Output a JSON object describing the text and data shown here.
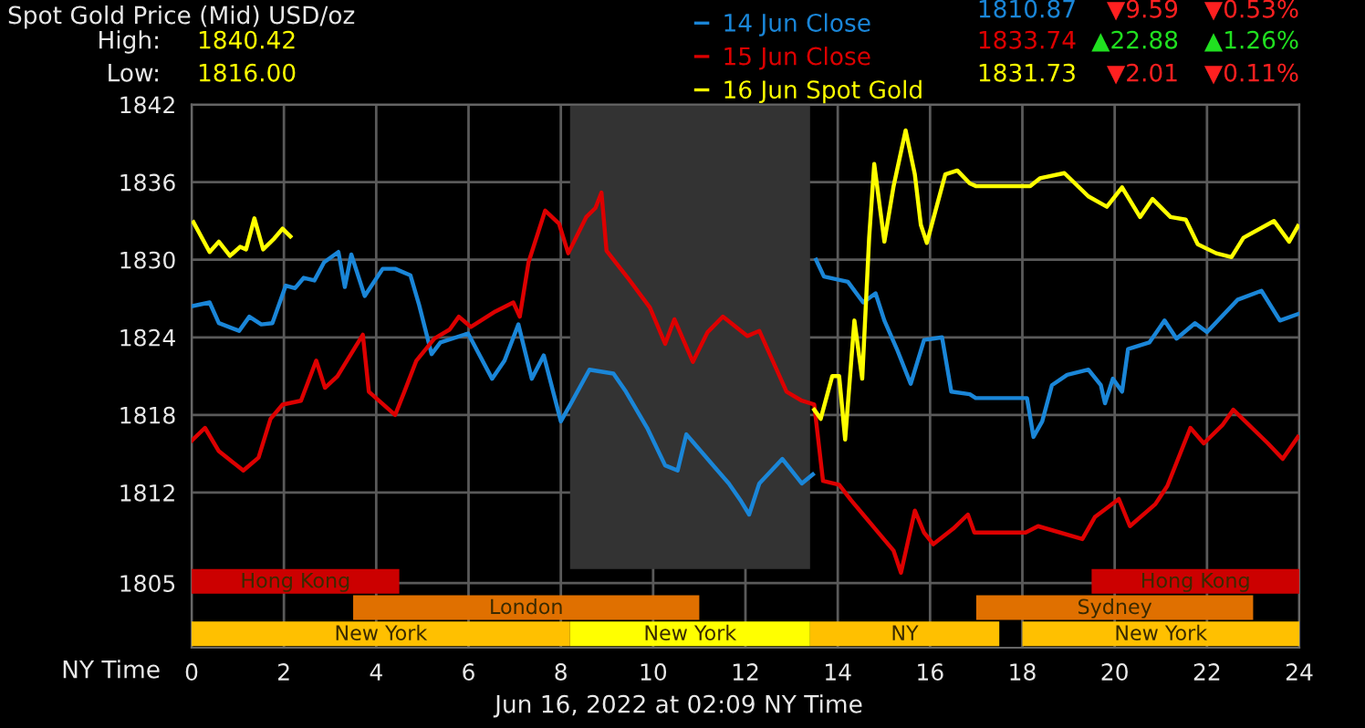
{
  "chart_data": {
    "type": "line",
    "title": "Spot Gold Price (Mid) USD/oz",
    "xlabel": "NY Time",
    "annotations": [
      "High:",
      "1840.42",
      "Low:",
      "1816.00",
      "1810.87",
      "▼9.59",
      "▼0.53%",
      "1833.74",
      "▲22.88",
      "▲1.26%",
      "1831.73",
      "▼2.01",
      "▼0.11%",
      "Jun 16, 2022 at 02:09 NY Time"
    ],
    "xlim": [
      0,
      24
    ],
    "xticks": [
      0,
      2,
      4,
      6,
      8,
      10,
      12,
      14,
      16,
      18,
      20,
      22,
      24
    ],
    "ylim": [
      1800,
      1842
    ],
    "yticks": [
      1842,
      1836,
      1830,
      1824,
      1818,
      1812,
      1805
    ],
    "grid": true,
    "legend": "top right",
    "bands": [
      {
        "axis": "x",
        "from": 8.2,
        "to": 13.4,
        "color": "#333333"
      },
      {
        "axis": "x",
        "from": 0,
        "to": 4.5,
        "label": "Hong Kong",
        "color": "#cc0000"
      },
      {
        "axis": "x",
        "from": 19.5,
        "to": 24,
        "label": "Hong Kong",
        "color": "#cc0000"
      },
      {
        "axis": "x",
        "from": 3.5,
        "to": 11,
        "label": "London",
        "color": "#e07000"
      },
      {
        "axis": "x",
        "from": 17,
        "to": 23,
        "label": "Sydney",
        "color": "#e07000"
      },
      {
        "axis": "x",
        "from": 0,
        "to": 8.2,
        "label": "New York",
        "color": "#ffc000"
      },
      {
        "axis": "x",
        "from": 8.2,
        "to": 13.4,
        "label": "New York",
        "color": "#ffff00"
      },
      {
        "axis": "x",
        "from": 13.4,
        "to": 17.5,
        "label": "NY",
        "color": "#ffc000"
      },
      {
        "axis": "x",
        "from": 18,
        "to": 24,
        "label": "New York",
        "color": "#ffc000"
      }
    ],
    "series": [
      {
        "name": "14 Jun Close",
        "color": "#1a86d8",
        "x": [
          0,
          0.39,
          0.59,
          1.03,
          1.25,
          1.51,
          1.75,
          2.04,
          2.24,
          2.43,
          2.66,
          2.87,
          3.18,
          3.32,
          3.46,
          3.75,
          4.14,
          4.41,
          4.74,
          4.93,
          5.2,
          5.39,
          5.99,
          6.51,
          6.78,
          7.08,
          7.37,
          7.63,
          8.0,
          8.22,
          8.62,
          9.14,
          9.41,
          9.87,
          10.26,
          10.53,
          10.72,
          11.25,
          11.64,
          11.91,
          12.08,
          12.3,
          12.8,
          13.22,
          13.46,
          13.49,
          13.53,
          13.7,
          14.22,
          14.55,
          14.82,
          15.01,
          15.28,
          15.58,
          15.87,
          16.26,
          16.46,
          16.86,
          16.99,
          18.1,
          18.24,
          18.43,
          18.64,
          18.97,
          19.43,
          19.7,
          19.79,
          19.96,
          20.16,
          20.29,
          20.75,
          21.08,
          21.34,
          21.74,
          22.0,
          22.66,
          23.18,
          23.58,
          23.97
        ],
        "values": [
          1826.4,
          1826.7,
          1825.1,
          1824.5,
          1825.6,
          1825.0,
          1825.1,
          1828.0,
          1827.8,
          1828.6,
          1828.4,
          1829.8,
          1830.6,
          1827.9,
          1830.4,
          1827.2,
          1829.3,
          1829.3,
          1828.8,
          1826.5,
          1822.7,
          1823.6,
          1824.3,
          1820.8,
          1822.2,
          1825.0,
          1820.8,
          1822.6,
          1817.5,
          1818.9,
          1821.5,
          1821.2,
          1819.8,
          1817.0,
          1814.1,
          1813.7,
          1816.5,
          1814.3,
          1812.7,
          1811.3,
          1810.3,
          1812.7,
          1814.6,
          1812.7,
          1813.4,
          null,
          1830.0,
          1828.7,
          1828.3,
          1826.7,
          1827.4,
          1825.3,
          1823.1,
          1820.4,
          1823.8,
          1824.0,
          1819.8,
          1819.6,
          1819.3,
          1819.3,
          1816.3,
          1817.5,
          1820.3,
          1821.1,
          1821.5,
          1820.3,
          1818.9,
          1820.8,
          1819.8,
          1823.1,
          1823.6,
          1825.3,
          1823.9,
          1825.1,
          1824.4,
          1826.9,
          1827.6,
          1825.3,
          1825.8
        ]
      },
      {
        "name": "15 Jun Close",
        "color": "#dd0000",
        "x": [
          0,
          0.29,
          0.59,
          1.12,
          1.45,
          1.71,
          1.97,
          2.37,
          2.7,
          2.89,
          3.16,
          3.71,
          3.84,
          4.41,
          4.61,
          4.87,
          5.26,
          5.59,
          5.79,
          6.05,
          6.58,
          6.97,
          7.11,
          7.3,
          7.66,
          7.96,
          8.16,
          8.55,
          8.75,
          8.88,
          8.99,
          9.47,
          9.93,
          10.26,
          10.46,
          10.86,
          11.18,
          11.51,
          12.04,
          12.3,
          12.89,
          13.22,
          13.49,
          13.68,
          14.03,
          14.29,
          14.55,
          14.88,
          15.21,
          15.37,
          15.67,
          15.87,
          16.07,
          16.5,
          16.82,
          16.96,
          18.07,
          18.34,
          19.3,
          19.57,
          20.09,
          20.33,
          20.88,
          21.14,
          21.64,
          21.93,
          22.33,
          22.57,
          23.32,
          23.64,
          23.97
        ],
        "values": [
          1816.0,
          1817.0,
          1815.2,
          1813.7,
          1814.7,
          1817.7,
          1818.8,
          1819.1,
          1822.2,
          1820.1,
          1821.0,
          1824.2,
          1819.8,
          1818.0,
          1819.8,
          1822.2,
          1823.9,
          1824.6,
          1825.6,
          1824.8,
          1826.0,
          1826.7,
          1825.6,
          1829.8,
          1833.8,
          1832.8,
          1830.5,
          1833.3,
          1834.0,
          1835.2,
          1830.7,
          1828.5,
          1826.3,
          1823.5,
          1825.4,
          1822.1,
          1824.4,
          1825.6,
          1824.1,
          1824.5,
          1819.8,
          1819.1,
          1818.8,
          1812.9,
          1812.6,
          1811.4,
          1810.3,
          1808.9,
          1807.5,
          1805.8,
          1810.6,
          1808.9,
          1808.0,
          1809.2,
          1810.3,
          1808.9,
          1808.9,
          1809.4,
          1808.4,
          1810.1,
          1811.5,
          1809.4,
          1811.1,
          1812.5,
          1817.0,
          1815.8,
          1817.2,
          1818.4,
          1815.8,
          1814.6,
          1816.3
        ]
      },
      {
        "name": "16 Jun Spot Gold",
        "color": "#ffff00",
        "x": [
          0.04,
          0.39,
          0.59,
          0.83,
          1.05,
          1.18,
          1.36,
          1.55,
          1.78,
          1.97,
          2.14,
          2.2,
          13.49,
          13.63,
          13.88,
          14.03,
          14.16,
          14.36,
          14.53,
          14.68,
          14.79,
          15.01,
          15.21,
          15.47,
          15.67,
          15.8,
          15.93,
          16.33,
          16.59,
          16.86,
          16.99,
          18.17,
          18.38,
          18.91,
          19.43,
          19.83,
          20.16,
          20.55,
          20.82,
          21.21,
          21.54,
          21.8,
          22.2,
          22.53,
          22.79,
          23.45,
          23.78,
          23.97
        ],
        "values": [
          1832.9,
          1830.6,
          1831.4,
          1830.3,
          1831.0,
          1830.8,
          1833.2,
          1830.8,
          1831.6,
          1832.4,
          1831.8,
          null,
          1818.4,
          1817.7,
          1821.0,
          1821.0,
          1816.1,
          1825.3,
          1820.8,
          1831.7,
          1837.4,
          1831.4,
          1835.7,
          1840.0,
          1836.6,
          1832.7,
          1831.3,
          1836.6,
          1836.9,
          1835.9,
          1835.7,
          1835.7,
          1836.3,
          1836.7,
          1834.9,
          1834.1,
          1835.6,
          1833.3,
          1834.7,
          1833.3,
          1833.1,
          1831.2,
          1830.5,
          1830.2,
          1831.7,
          1833.0,
          1831.4,
          1832.6
        ]
      }
    ]
  }
}
